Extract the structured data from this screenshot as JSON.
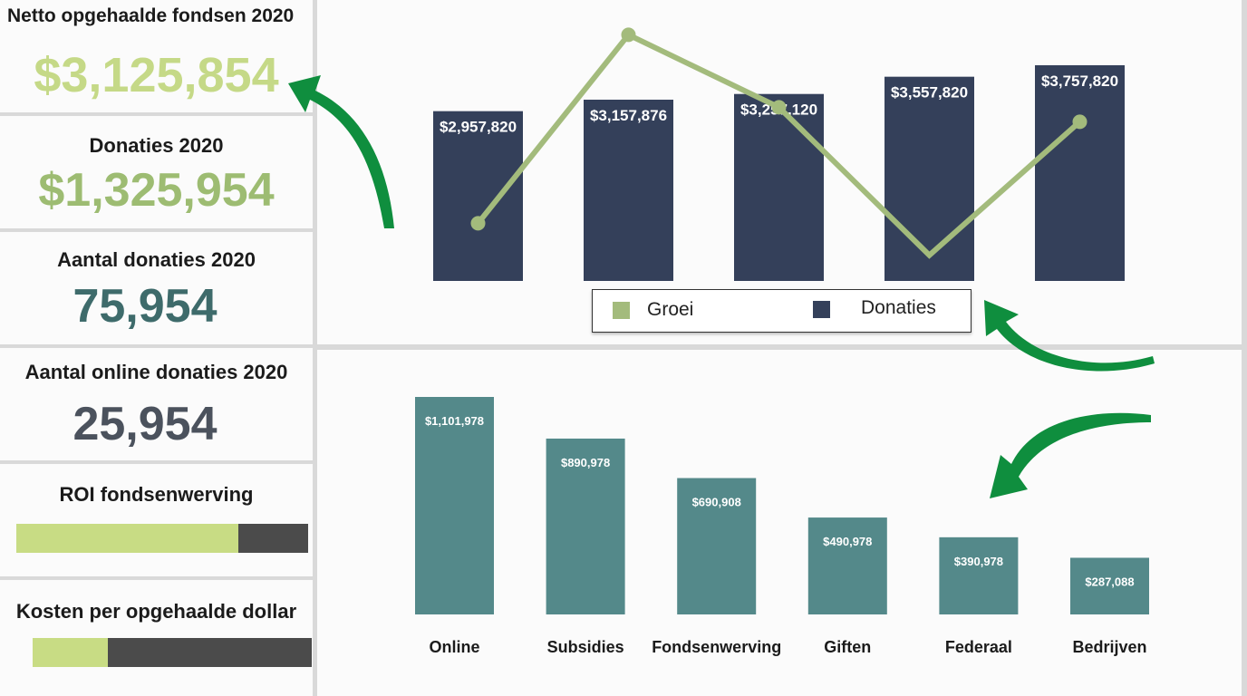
{
  "kpis": [
    {
      "title": "Netto opgehaalde fondsen 2020",
      "value": "$3,125,854"
    },
    {
      "title": "Donaties 2020",
      "value": "$1,325,954"
    },
    {
      "title": "Aantal donaties 2020",
      "value": "75,954"
    },
    {
      "title": "Aantal online donaties 2020",
      "value": "25,954"
    }
  ],
  "progress": [
    {
      "title": "ROI fondsenwerving",
      "fraction": 0.76
    },
    {
      "title": "Kosten per opgehaalde dollar",
      "fraction": 0.27
    }
  ],
  "colors": {
    "net": "#c5d987",
    "donaties": "#9dbc72",
    "aantal": "#3e6b6b",
    "online": "#4b525d",
    "bar_dark": "#34405a",
    "groei": "#a3bb7c",
    "teal": "#54898a",
    "progress_fill": "#c8dc84",
    "progress_track": "#4b4b4b",
    "arrow": "#0f8e3e"
  },
  "chart_data": [
    {
      "type": "bar",
      "categories": [
        "",
        "",
        "",
        "",
        ""
      ],
      "series": [
        {
          "name": "Donaties",
          "type": "bar",
          "values": [
            2957820,
            3157876,
            3257120,
            3557820,
            3757820
          ],
          "labels": [
            "$2,957,820",
            "$3,157,876",
            "$3,257,120",
            "$3,557,820",
            "$3,757,820"
          ]
        },
        {
          "name": "Groei",
          "type": "line",
          "values": [
            0.23,
            0.88,
            0.63,
            0.12,
            0.58
          ]
        }
      ],
      "legend": "bottom"
    },
    {
      "type": "bar",
      "categories": [
        "Online",
        "Subsidies",
        "Fondsenwerving",
        "Giften",
        "Federaal",
        "Bedrijven"
      ],
      "values": [
        1101978,
        890978,
        690908,
        490978,
        390978,
        287088
      ],
      "labels": [
        "$1,101,978",
        "$890,978",
        "$690,908",
        "$490,978",
        "$390,978",
        "$287,088"
      ]
    }
  ]
}
